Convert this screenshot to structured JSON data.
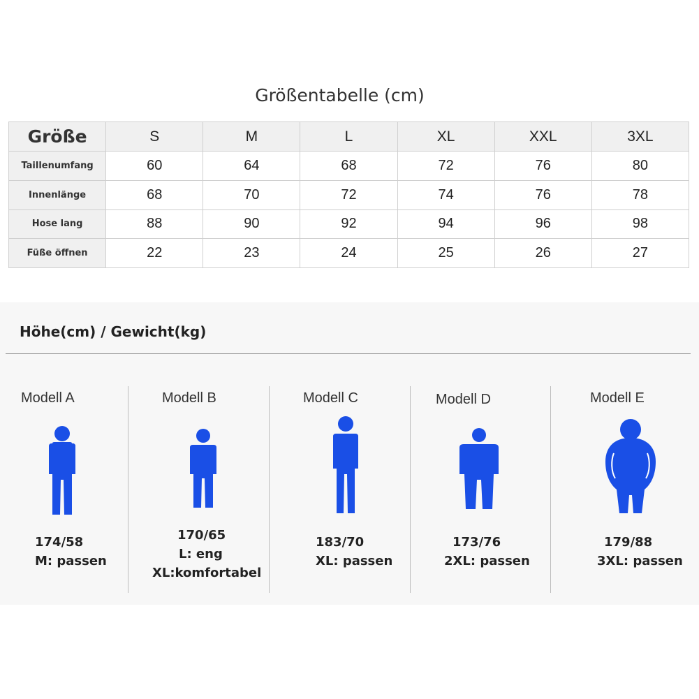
{
  "table": {
    "title": "Größentabelle (cm)",
    "header_label": "Größe",
    "sizes": [
      "S",
      "M",
      "L",
      "XL",
      "XXL",
      "3XL"
    ],
    "rows": [
      {
        "label": "Taillenumfang",
        "values": [
          "60",
          "64",
          "68",
          "72",
          "76",
          "80"
        ]
      },
      {
        "label": "Innenlänge",
        "values": [
          "68",
          "70",
          "72",
          "74",
          "76",
          "78"
        ]
      },
      {
        "label": "Hose lang",
        "values": [
          "88",
          "90",
          "92",
          "94",
          "96",
          "98"
        ]
      },
      {
        "label": "Füße öffnen",
        "values": [
          "22",
          "23",
          "24",
          "25",
          "26",
          "27"
        ]
      }
    ]
  },
  "models": {
    "title": "Höhe(cm) / Gewicht(kg)",
    "figure_color": "#1a4fe6",
    "items": [
      {
        "name": "Modell  A",
        "stats": "174/58",
        "fit": [
          "M: passen"
        ]
      },
      {
        "name": "Modell  B",
        "stats": "170/65",
        "fit": [
          "L:  eng",
          "XL:komfortabel"
        ]
      },
      {
        "name": "Modell  C",
        "stats": "183/70",
        "fit": [
          "XL: passen"
        ]
      },
      {
        "name": "Modell  D",
        "stats": "173/76",
        "fit": [
          "2XL: passen"
        ]
      },
      {
        "name": "Modell  E",
        "stats": "179/88",
        "fit": [
          "3XL: passen"
        ]
      }
    ]
  }
}
